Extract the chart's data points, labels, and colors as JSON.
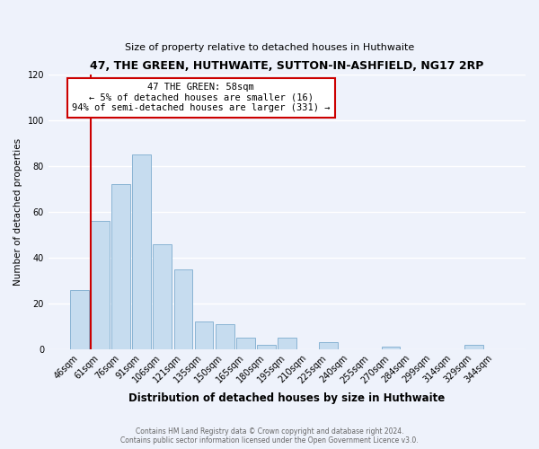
{
  "title": "47, THE GREEN, HUTHWAITE, SUTTON-IN-ASHFIELD, NG17 2RP",
  "subtitle": "Size of property relative to detached houses in Huthwaite",
  "xlabel": "Distribution of detached houses by size in Huthwaite",
  "ylabel": "Number of detached properties",
  "bar_labels": [
    "46sqm",
    "61sqm",
    "76sqm",
    "91sqm",
    "106sqm",
    "121sqm",
    "135sqm",
    "150sqm",
    "165sqm",
    "180sqm",
    "195sqm",
    "210sqm",
    "225sqm",
    "240sqm",
    "255sqm",
    "270sqm",
    "284sqm",
    "299sqm",
    "314sqm",
    "329sqm",
    "344sqm"
  ],
  "bar_values": [
    26,
    56,
    72,
    85,
    46,
    35,
    12,
    11,
    5,
    2,
    5,
    0,
    3,
    0,
    0,
    1,
    0,
    0,
    0,
    2,
    0
  ],
  "bar_color": "#c6dcef",
  "bar_edge_color": "#8ab4d4",
  "property_line_color": "#cc0000",
  "annotation_title": "47 THE GREEN: 58sqm",
  "annotation_line1": "← 5% of detached houses are smaller (16)",
  "annotation_line2": "94% of semi-detached houses are larger (331) →",
  "annotation_box_color": "#ffffff",
  "annotation_box_edge_color": "#cc0000",
  "ylim": [
    0,
    120
  ],
  "yticks": [
    0,
    20,
    40,
    60,
    80,
    100,
    120
  ],
  "footer_line1": "Contains HM Land Registry data © Crown copyright and database right 2024.",
  "footer_line2": "Contains public sector information licensed under the Open Government Licence v3.0.",
  "bg_color": "#eef2fb",
  "grid_color": "#ffffff"
}
